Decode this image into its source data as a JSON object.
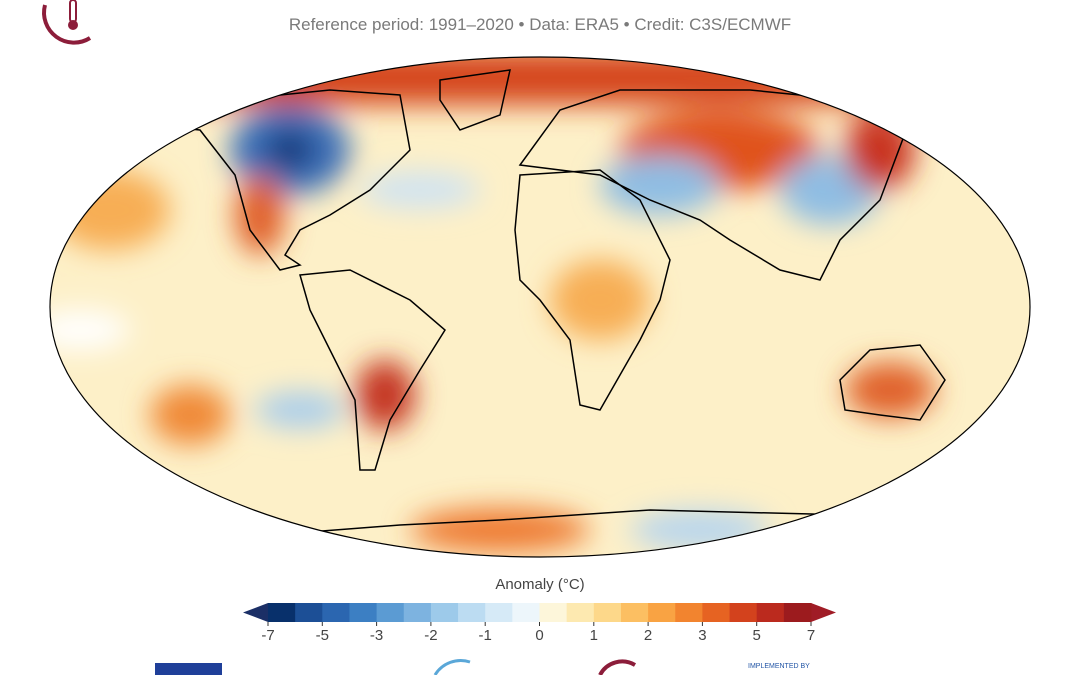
{
  "subtitle": "Reference period: 1991–2020 • Data: ERA5 • Credit: C3S/ECMWF",
  "colorbar": {
    "label": "Anomaly (°C)",
    "ticks": [
      -7,
      -5,
      -3,
      -2,
      -1,
      0,
      1,
      2,
      3,
      5,
      7
    ],
    "colors": [
      "#08306b",
      "#1c4f96",
      "#2b66b0",
      "#3c7fc3",
      "#5b9bd3",
      "#7db3e0",
      "#9dcaea",
      "#bcdcf2",
      "#d6eaf7",
      "#edf6fb",
      "#fdf6da",
      "#fde9b0",
      "#fdd88a",
      "#fcbf62",
      "#f9a343",
      "#f2842f",
      "#e66322",
      "#d3421d",
      "#bb2a1e",
      "#9c1b1e"
    ],
    "under": "#1b2f66",
    "over": "#a01c26"
  },
  "footer": {
    "implemented": "IMPLEMENTED BY"
  }
}
